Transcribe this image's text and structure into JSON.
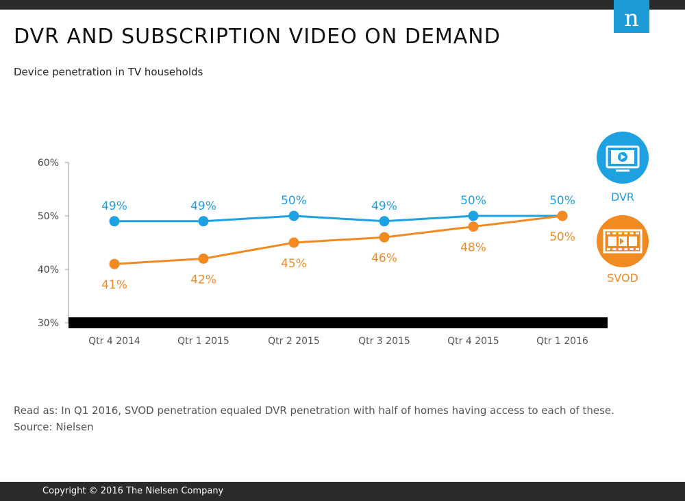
{
  "header": {
    "title": "DVR AND SUBSCRIPTION VIDEO ON DEMAND",
    "subtitle": "Device penetration in TV households",
    "logo_letter": "n"
  },
  "chart_data": {
    "type": "line",
    "categories": [
      "Qtr 4 2014",
      "Qtr 1 2015",
      "Qtr 2 2015",
      "Qtr 3 2015",
      "Qtr 4 2015",
      "Qtr 1 2016"
    ],
    "ylim": [
      30,
      60
    ],
    "yticks": [
      "30%",
      "40%",
      "50%",
      "60%"
    ],
    "series": [
      {
        "name": "DVR",
        "color": "#1ea1e0",
        "values": [
          49,
          49,
          50,
          49,
          50,
          50
        ],
        "labels": [
          "49%",
          "49%",
          "50%",
          "49%",
          "50%",
          "50%"
        ],
        "icon": "tv-icon"
      },
      {
        "name": "SVOD",
        "color": "#f28a22",
        "values": [
          41,
          42,
          45,
          46,
          48,
          50
        ],
        "labels": [
          "41%",
          "42%",
          "45%",
          "46%",
          "48%",
          "50%"
        ],
        "icon": "film-strip-icon"
      }
    ],
    "grid": false,
    "legend": "right"
  },
  "notes": {
    "read_as": "Read as: In Q1 2016, SVOD penetration equaled DVR penetration with half of homes having access to each of these.",
    "source": "Source: Nielsen"
  },
  "footer": {
    "copyright": "Copyright © 2016 The Nielsen Company"
  }
}
